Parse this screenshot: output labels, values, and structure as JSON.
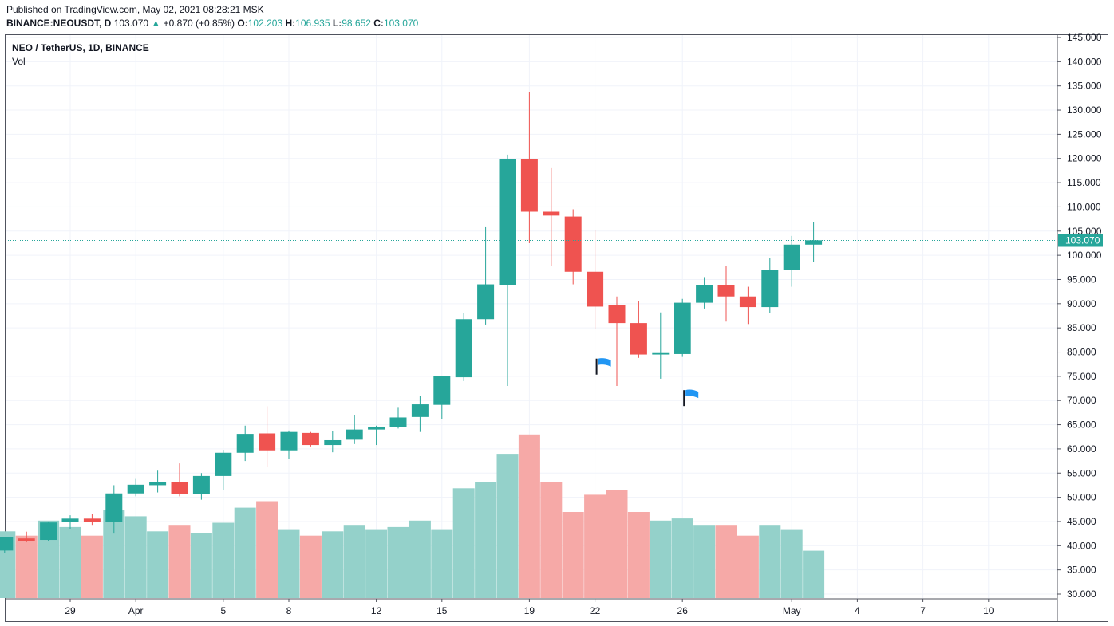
{
  "header": {
    "published": "Published on TradingView.com, May 02, 2021 08:28:21 MSK",
    "symbol": "BINANCE:NEOUSDT, D",
    "price": "103.070",
    "arrow": "▲",
    "change": "+0.870 (+0.85%)",
    "o_label": "O:",
    "o_value": "102.203",
    "h_label": "H:",
    "h_value": "106.935",
    "l_label": "L:",
    "l_value": "98.652",
    "c_label": "C:",
    "c_value": "103.070"
  },
  "legend": {
    "title": "NEO / TetherUS, 1D, BINANCE",
    "volume": "Vol"
  },
  "colors": {
    "up": "#26a69a",
    "down": "#ef5350",
    "up_volume": "#94d1ca",
    "down_volume": "#f6a9a7",
    "grid": "#f0f3fa",
    "flag": "#2196f3",
    "text": "#131722"
  },
  "chart_data": {
    "type": "candlestick",
    "y_axis": {
      "min": 30,
      "max": 145,
      "ticks": [
        30,
        35,
        40,
        45,
        50,
        55,
        60,
        65,
        70,
        75,
        80,
        85,
        90,
        95,
        100,
        105,
        110,
        115,
        120,
        125,
        130,
        135,
        140,
        145
      ],
      "tick_labels": [
        "30.000",
        "35.000",
        "40.000",
        "45.000",
        "50.000",
        "55.000",
        "60.000",
        "65.000",
        "70.000",
        "75.000",
        "80.000",
        "85.000",
        "90.000",
        "95.000",
        "100.000",
        "105.000",
        "110.000",
        "115.000",
        "120.000",
        "125.000",
        "130.000",
        "135.000",
        "140.000",
        "145.000"
      ]
    },
    "x_axis": {
      "labels": [
        {
          "text": "29",
          "day": 0
        },
        {
          "text": "Apr",
          "day": 3
        },
        {
          "text": "5",
          "day": 7
        },
        {
          "text": "8",
          "day": 10
        },
        {
          "text": "12",
          "day": 14
        },
        {
          "text": "15",
          "day": 17
        },
        {
          "text": "19",
          "day": 21
        },
        {
          "text": "22",
          "day": 24
        },
        {
          "text": "26",
          "day": 28
        },
        {
          "text": "May",
          "day": 33
        },
        {
          "text": "4",
          "day": 36
        },
        {
          "text": "7",
          "day": 39
        },
        {
          "text": "10",
          "day": 42
        }
      ]
    },
    "last_price": {
      "value": 103.07,
      "label": "103.070"
    },
    "candles": [
      {
        "date": "2021-03-26",
        "o": 39.0,
        "h": 41.0,
        "l": 38.5,
        "c": 41.7,
        "v": 31
      },
      {
        "date": "2021-03-27",
        "o": 41.5,
        "h": 42.9,
        "l": 40.7,
        "c": 41.0,
        "v": 29
      },
      {
        "date": "2021-03-28",
        "o": 41.2,
        "h": 45.0,
        "l": 41.0,
        "c": 44.8,
        "v": 36
      },
      {
        "date": "2021-03-29",
        "o": 44.9,
        "h": 46.3,
        "l": 43.5,
        "c": 45.6,
        "v": 33
      },
      {
        "date": "2021-03-30",
        "o": 45.6,
        "h": 46.5,
        "l": 44.3,
        "c": 44.9,
        "v": 29
      },
      {
        "date": "2021-03-31",
        "o": 44.9,
        "h": 52.5,
        "l": 42.5,
        "c": 50.8,
        "v": 41
      },
      {
        "date": "2021-04-01",
        "o": 50.8,
        "h": 53.8,
        "l": 50.2,
        "c": 52.6,
        "v": 38
      },
      {
        "date": "2021-04-02",
        "o": 52.5,
        "h": 55.5,
        "l": 51.0,
        "c": 53.2,
        "v": 31
      },
      {
        "date": "2021-04-03",
        "o": 53.1,
        "h": 57.0,
        "l": 50.2,
        "c": 50.6,
        "v": 34
      },
      {
        "date": "2021-04-04",
        "o": 50.6,
        "h": 55.0,
        "l": 49.5,
        "c": 54.4,
        "v": 30
      },
      {
        "date": "2021-04-05",
        "o": 54.4,
        "h": 59.8,
        "l": 51.5,
        "c": 59.2,
        "v": 35
      },
      {
        "date": "2021-04-06",
        "o": 59.2,
        "h": 64.8,
        "l": 57.5,
        "c": 63.1,
        "v": 42
      },
      {
        "date": "2021-04-07",
        "o": 63.2,
        "h": 68.8,
        "l": 56.3,
        "c": 59.7,
        "v": 45
      },
      {
        "date": "2021-04-08",
        "o": 59.7,
        "h": 63.8,
        "l": 58.0,
        "c": 63.5,
        "v": 32
      },
      {
        "date": "2021-04-09",
        "o": 63.3,
        "h": 63.5,
        "l": 60.5,
        "c": 60.8,
        "v": 29
      },
      {
        "date": "2021-04-10",
        "o": 60.8,
        "h": 63.7,
        "l": 59.3,
        "c": 61.8,
        "v": 31
      },
      {
        "date": "2021-04-11",
        "o": 61.9,
        "h": 67.0,
        "l": 61.0,
        "c": 64.0,
        "v": 34
      },
      {
        "date": "2021-04-12",
        "o": 64.0,
        "h": 64.8,
        "l": 60.8,
        "c": 64.6,
        "v": 32
      },
      {
        "date": "2021-04-13",
        "o": 64.6,
        "h": 68.5,
        "l": 64.2,
        "c": 66.5,
        "v": 33
      },
      {
        "date": "2021-04-14",
        "o": 66.6,
        "h": 71.0,
        "l": 63.5,
        "c": 69.2,
        "v": 36
      },
      {
        "date": "2021-04-15",
        "o": 69.1,
        "h": 74.8,
        "l": 66.2,
        "c": 75.0,
        "v": 32
      },
      {
        "date": "2021-04-16",
        "o": 74.8,
        "h": 88.0,
        "l": 74.0,
        "c": 86.8,
        "v": 51
      },
      {
        "date": "2021-04-17",
        "o": 86.8,
        "h": 105.8,
        "l": 85.7,
        "c": 94.0,
        "v": 54
      },
      {
        "date": "2021-04-18",
        "o": 93.8,
        "h": 120.8,
        "l": 73.0,
        "c": 119.8,
        "v": 67
      },
      {
        "date": "2021-04-19",
        "o": 119.8,
        "h": 133.8,
        "l": 102.5,
        "c": 109.0,
        "v": 76
      },
      {
        "date": "2021-04-20",
        "o": 109.0,
        "h": 118.0,
        "l": 97.8,
        "c": 108.2,
        "v": 54
      },
      {
        "date": "2021-04-21",
        "o": 108.0,
        "h": 109.5,
        "l": 94.0,
        "c": 96.6,
        "v": 40
      },
      {
        "date": "2021-04-22",
        "o": 96.6,
        "h": 105.3,
        "l": 84.8,
        "c": 89.4,
        "v": 48
      },
      {
        "date": "2021-04-23",
        "o": 89.8,
        "h": 91.5,
        "l": 73.0,
        "c": 86.0,
        "v": 50
      },
      {
        "date": "2021-04-24",
        "o": 86.0,
        "h": 90.5,
        "l": 78.8,
        "c": 79.5,
        "v": 40
      },
      {
        "date": "2021-04-25",
        "o": 79.5,
        "h": 88.2,
        "l": 74.5,
        "c": 79.8,
        "v": 36
      },
      {
        "date": "2021-04-26",
        "o": 79.6,
        "h": 91.0,
        "l": 79.0,
        "c": 90.2,
        "v": 37
      },
      {
        "date": "2021-04-27",
        "o": 90.2,
        "h": 95.5,
        "l": 89.0,
        "c": 93.9,
        "v": 34
      },
      {
        "date": "2021-04-28",
        "o": 93.9,
        "h": 97.8,
        "l": 86.3,
        "c": 91.5,
        "v": 34
      },
      {
        "date": "2021-04-29",
        "o": 91.5,
        "h": 93.5,
        "l": 85.8,
        "c": 89.3,
        "v": 29
      },
      {
        "date": "2021-04-30",
        "o": 89.3,
        "h": 99.5,
        "l": 88.0,
        "c": 97.0,
        "v": 34
      },
      {
        "date": "2021-05-01",
        "o": 97.0,
        "h": 104.0,
        "l": 93.5,
        "c": 102.2,
        "v": 32
      },
      {
        "date": "2021-05-02",
        "o": 102.2,
        "h": 106.9,
        "l": 98.7,
        "c": 103.1,
        "v": 22
      }
    ],
    "flags": [
      {
        "day": 24,
        "price": 77.0
      },
      {
        "day": 28,
        "price": 70.5
      }
    ]
  }
}
